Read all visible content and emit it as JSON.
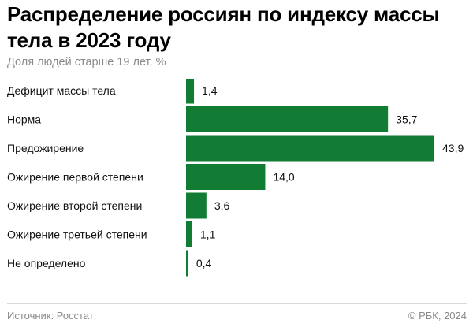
{
  "header": {
    "title": "Распределение россиян по индексу массы тела в 2023 году",
    "subtitle": "Доля людей старше 19 лет, %"
  },
  "footer": {
    "source": "Источник: Росстат",
    "credit": "© РБК, 2024"
  },
  "colors": {
    "bar": "#127b34",
    "axis": "#999999"
  },
  "chart_data": {
    "type": "bar",
    "orientation": "horizontal",
    "categories": [
      "Дефицит массы тела",
      "Норма",
      "Предожирение",
      "Ожирение первой степени",
      "Ожирение второй степени",
      "Ожирение третьей степени",
      "Не определено"
    ],
    "values": [
      1.4,
      35.7,
      43.9,
      14.0,
      3.6,
      1.1,
      0.4
    ],
    "value_labels": [
      "1,4",
      "35,7",
      "43,9",
      "14,0",
      "3,6",
      "1,1",
      "0,4"
    ],
    "xlim": [
      0,
      43.9
    ],
    "grid": false,
    "legend": "none"
  }
}
